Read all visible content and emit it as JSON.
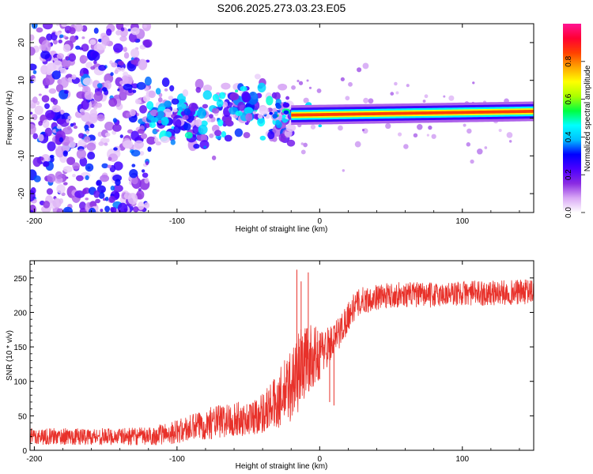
{
  "title": "S206.2025.273.03.23.E05",
  "chart_data": [
    {
      "type": "heatmap",
      "name": "spectrogram",
      "xlabel": "Height of straight line (km)",
      "ylabel": "Frequency (Hz)",
      "xlim": [
        -203,
        150
      ],
      "ylim": [
        -25,
        25
      ],
      "xticks": [
        -200,
        -100,
        0,
        100
      ],
      "yticks": [
        -20,
        -10,
        0,
        10,
        20
      ],
      "band": {
        "description": "narrow high-amplitude tone near 0-2 Hz for heights above about -20 km",
        "x_start": -20,
        "x_end": 150,
        "freq_center_start": 0.8,
        "freq_center_end": 1.8,
        "amplitude": 0.85
      },
      "noise_regions": [
        {
          "x_from": -203,
          "x_to": -120,
          "freq_halfwidth": 25,
          "density": "high"
        },
        {
          "x_from": -120,
          "x_to": -20,
          "freq_halfwidth": 9,
          "density": "medium"
        }
      ],
      "colorbar": {
        "label": "Normalized spectral amplitude",
        "ticks": [
          0.0,
          0.2,
          0.4,
          0.6,
          0.8
        ],
        "range": [
          0,
          1
        ],
        "colormap": [
          "#ffffff",
          "#d9a8f5",
          "#8a2be2",
          "#4b00ff",
          "#0000ff",
          "#00bfff",
          "#00ffff",
          "#00ff40",
          "#aaff00",
          "#ffff00",
          "#ffa500",
          "#ff4000",
          "#ff0033",
          "#ff1493"
        ]
      }
    },
    {
      "type": "line",
      "name": "snr",
      "xlabel": "Height of straight line (km)",
      "ylabel": "SNR (10 * v/v)",
      "xlim": [
        -203,
        150
      ],
      "ylim": [
        0,
        275
      ],
      "xticks": [
        -200,
        -100,
        0,
        100
      ],
      "yticks": [
        0,
        50,
        100,
        150,
        200,
        250
      ],
      "line_color": "#e8312a",
      "series": [
        {
          "name": "SNR trend",
          "x": [
            -203,
            -180,
            -160,
            -140,
            -120,
            -100,
            -90,
            -80,
            -70,
            -60,
            -50,
            -40,
            -30,
            -20,
            -15,
            -10,
            -5,
            0,
            5,
            10,
            15,
            20,
            25,
            30,
            40,
            50,
            60,
            80,
            100,
            120,
            150
          ],
          "y": [
            20,
            20,
            20,
            20,
            20,
            27,
            32,
            38,
            42,
            45,
            45,
            55,
            70,
            95,
            115,
            130,
            135,
            140,
            150,
            160,
            175,
            195,
            210,
            217,
            222,
            225,
            226,
            225,
            228,
            228,
            230
          ],
          "noise_amplitude": [
            12,
            12,
            12,
            12,
            13,
            17,
            20,
            22,
            25,
            25,
            25,
            30,
            40,
            55,
            60,
            55,
            45,
            38,
            30,
            25,
            25,
            22,
            20,
            20,
            18,
            18,
            18,
            18,
            18,
            18,
            18
          ]
        }
      ],
      "notable_spikes": [
        {
          "x": -16,
          "y": 262
        },
        {
          "x": -13,
          "y": 245
        },
        {
          "x": -8,
          "y": 258
        },
        {
          "x": 7,
          "y": 70
        },
        {
          "x": 10,
          "y": 65
        }
      ]
    }
  ]
}
